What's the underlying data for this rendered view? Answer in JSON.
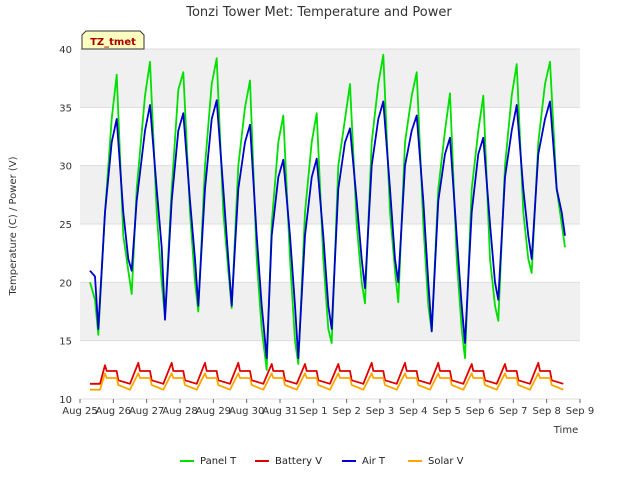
{
  "chart_data": {
    "type": "line",
    "title": "Tonzi Tower Met: Temperature and Power",
    "xlabel": "Time",
    "ylabel": "Temperature (C) / Power (V)",
    "ylim": [
      10,
      40
    ],
    "xlim": [
      0,
      15
    ],
    "yticks": [
      10,
      15,
      20,
      25,
      30,
      35,
      40
    ],
    "xticks": [
      {
        "value": 0,
        "label": "Aug 25"
      },
      {
        "value": 1,
        "label": "Aug 26"
      },
      {
        "value": 2,
        "label": "Aug 27"
      },
      {
        "value": 3,
        "label": "Aug 28"
      },
      {
        "value": 4,
        "label": "Aug 29"
      },
      {
        "value": 5,
        "label": "Aug 30"
      },
      {
        "value": 6,
        "label": "Aug 31"
      },
      {
        "value": 7,
        "label": "Sep 1"
      },
      {
        "value": 8,
        "label": "Sep 2"
      },
      {
        "value": 9,
        "label": "Sep 3"
      },
      {
        "value": 10,
        "label": "Sep 4"
      },
      {
        "value": 11,
        "label": "Sep 5"
      },
      {
        "value": 12,
        "label": "Sep 6"
      },
      {
        "value": 13,
        "label": "Sep 7"
      },
      {
        "value": 14,
        "label": "Sep 8"
      },
      {
        "value": 15,
        "label": "Sep 9"
      }
    ],
    "grid": true,
    "legend_position": "bottom",
    "station_tag": "TZ_tmet",
    "series": [
      {
        "name": "Panel T",
        "color": "#00e000",
        "x": [
          0.3,
          0.45,
          0.55,
          0.75,
          0.95,
          1.1,
          1.3,
          1.45,
          1.55,
          1.7,
          1.95,
          2.1,
          2.3,
          2.45,
          2.55,
          2.75,
          2.95,
          3.1,
          3.3,
          3.45,
          3.55,
          3.75,
          3.95,
          4.1,
          4.3,
          4.45,
          4.55,
          4.75,
          4.95,
          5.1,
          5.3,
          5.45,
          5.6,
          5.75,
          5.95,
          6.1,
          6.3,
          6.45,
          6.55,
          6.75,
          6.95,
          7.1,
          7.3,
          7.45,
          7.55,
          7.75,
          7.95,
          8.1,
          8.3,
          8.45,
          8.55,
          8.75,
          8.95,
          9.1,
          9.3,
          9.45,
          9.55,
          9.75,
          9.95,
          10.1,
          10.3,
          10.45,
          10.55,
          10.75,
          10.95,
          11.1,
          11.3,
          11.45,
          11.55,
          11.75,
          11.95,
          12.1,
          12.3,
          12.45,
          12.55,
          12.75,
          12.95,
          13.1,
          13.3,
          13.45,
          13.55,
          13.75,
          13.95,
          14.1,
          14.3,
          14.45,
          14.55
        ],
        "y": [
          20,
          18.5,
          15.5,
          26,
          34,
          37.8,
          24,
          21,
          19,
          28,
          36,
          38.9,
          26,
          20,
          17,
          28,
          36.5,
          38,
          26,
          20,
          17.5,
          30,
          37,
          39.2,
          26,
          21,
          17.8,
          30,
          35,
          37.3,
          22,
          16,
          12.5,
          25,
          32,
          34.3,
          22,
          15,
          13,
          26,
          32,
          34.5,
          22,
          16,
          14.8,
          30,
          34,
          37,
          25,
          20,
          18.2,
          32,
          37,
          39.5,
          26,
          21,
          18.3,
          32,
          36,
          38,
          25,
          18,
          15.8,
          28,
          33,
          36.2,
          22,
          16,
          13.5,
          28,
          33,
          36,
          22,
          18,
          16.7,
          30,
          36,
          38.7,
          26,
          22,
          20.8,
          32,
          37,
          38.9,
          28,
          25,
          23
        ]
      },
      {
        "name": "Battery V",
        "color": "#dd0000",
        "x": [
          0.3,
          0.6,
          0.75,
          0.8,
          1.1,
          1.15,
          1.5,
          1.75,
          1.8,
          2.1,
          2.15,
          2.5,
          2.75,
          2.8,
          3.1,
          3.15,
          3.5,
          3.75,
          3.8,
          4.1,
          4.15,
          4.5,
          4.75,
          4.8,
          5.1,
          5.15,
          5.5,
          5.75,
          5.8,
          6.1,
          6.15,
          6.5,
          6.75,
          6.8,
          7.1,
          7.15,
          7.5,
          7.75,
          7.8,
          8.1,
          8.15,
          8.5,
          8.75,
          8.8,
          9.1,
          9.15,
          9.5,
          9.75,
          9.8,
          10.1,
          10.15,
          10.5,
          10.75,
          10.8,
          11.1,
          11.15,
          11.5,
          11.75,
          11.8,
          12.1,
          12.15,
          12.5,
          12.75,
          12.8,
          13.1,
          13.15,
          13.5,
          13.75,
          13.8,
          14.1,
          14.15,
          14.5
        ],
        "y": [
          11.3,
          11.3,
          12.9,
          12.4,
          12.4,
          11.6,
          11.3,
          13.1,
          12.4,
          12.4,
          11.6,
          11.3,
          13.1,
          12.4,
          12.4,
          11.6,
          11.3,
          13.1,
          12.4,
          12.4,
          11.6,
          11.3,
          13.1,
          12.4,
          12.4,
          11.6,
          11.3,
          13.0,
          12.4,
          12.4,
          11.6,
          11.3,
          13.0,
          12.4,
          12.4,
          11.6,
          11.3,
          13.0,
          12.4,
          12.4,
          11.6,
          11.3,
          13.1,
          12.4,
          12.4,
          11.6,
          11.3,
          13.1,
          12.4,
          12.4,
          11.6,
          11.3,
          13.1,
          12.4,
          12.4,
          11.6,
          11.3,
          13.0,
          12.4,
          12.4,
          11.6,
          11.3,
          13.0,
          12.4,
          12.4,
          11.6,
          11.3,
          13.1,
          12.4,
          12.4,
          11.6,
          11.3
        ]
      },
      {
        "name": "Air T",
        "color": "#0000cc",
        "x": [
          0.3,
          0.45,
          0.55,
          0.75,
          0.95,
          1.1,
          1.3,
          1.45,
          1.55,
          1.7,
          1.95,
          2.1,
          2.3,
          2.45,
          2.55,
          2.75,
          2.95,
          3.1,
          3.3,
          3.45,
          3.55,
          3.75,
          3.95,
          4.1,
          4.3,
          4.45,
          4.55,
          4.75,
          4.95,
          5.1,
          5.3,
          5.45,
          5.6,
          5.75,
          5.95,
          6.1,
          6.3,
          6.45,
          6.55,
          6.75,
          6.95,
          7.1,
          7.3,
          7.45,
          7.55,
          7.75,
          7.95,
          8.1,
          8.3,
          8.45,
          8.55,
          8.75,
          8.95,
          9.1,
          9.3,
          9.45,
          9.55,
          9.75,
          9.95,
          10.1,
          10.3,
          10.45,
          10.55,
          10.75,
          10.95,
          11.1,
          11.3,
          11.45,
          11.55,
          11.75,
          11.95,
          12.1,
          12.3,
          12.45,
          12.55,
          12.75,
          12.95,
          13.1,
          13.3,
          13.45,
          13.55,
          13.75,
          13.95,
          14.1,
          14.3,
          14.45,
          14.55
        ],
        "y": [
          21,
          20.5,
          16,
          26,
          32,
          34,
          26,
          22,
          21,
          27,
          33,
          35.2,
          28,
          23,
          16.8,
          27,
          33,
          34.5,
          27,
          22,
          18,
          28,
          34,
          35.6,
          28,
          22,
          18,
          28,
          32,
          33.5,
          24,
          18,
          13.5,
          24,
          29,
          30.5,
          24,
          18,
          13.5,
          24,
          29,
          30.6,
          24,
          18,
          16,
          28,
          32,
          33.2,
          27,
          22,
          19.5,
          30,
          34,
          35.5,
          28,
          22,
          20,
          30,
          33,
          34.3,
          27,
          20,
          15.8,
          27,
          31,
          32.4,
          24,
          18,
          14.8,
          26,
          31,
          32.4,
          25,
          20,
          18.5,
          29,
          33,
          35.2,
          28,
          24,
          22,
          31,
          34,
          35.5,
          28,
          26,
          24
        ]
      },
      {
        "name": "Solar V",
        "color": "#ffa500",
        "x": [
          0.3,
          0.6,
          0.75,
          0.8,
          1.1,
          1.15,
          1.5,
          1.75,
          1.8,
          2.1,
          2.15,
          2.5,
          2.75,
          2.8,
          3.1,
          3.15,
          3.5,
          3.75,
          3.8,
          4.1,
          4.15,
          4.5,
          4.75,
          4.8,
          5.1,
          5.15,
          5.5,
          5.75,
          5.8,
          6.1,
          6.15,
          6.5,
          6.75,
          6.8,
          7.1,
          7.15,
          7.5,
          7.75,
          7.8,
          8.1,
          8.15,
          8.5,
          8.75,
          8.8,
          9.1,
          9.15,
          9.5,
          9.75,
          9.8,
          10.1,
          10.15,
          10.5,
          10.75,
          10.8,
          11.1,
          11.15,
          11.5,
          11.75,
          11.8,
          12.1,
          12.15,
          12.5,
          12.75,
          12.8,
          13.1,
          13.15,
          13.5,
          13.75,
          13.8,
          14.1,
          14.15,
          14.5
        ],
        "y": [
          10.8,
          10.8,
          12.2,
          11.8,
          11.8,
          11.2,
          10.8,
          12.2,
          11.8,
          11.8,
          11.2,
          10.8,
          12.2,
          11.8,
          11.8,
          11.2,
          10.8,
          12.2,
          11.8,
          11.8,
          11.2,
          10.8,
          12.2,
          11.8,
          11.8,
          11.2,
          10.8,
          12.2,
          11.8,
          11.8,
          11.2,
          10.8,
          12.2,
          11.8,
          11.8,
          11.2,
          10.8,
          12.2,
          11.8,
          11.8,
          11.2,
          10.8,
          12.2,
          11.8,
          11.8,
          11.2,
          10.8,
          12.2,
          11.8,
          11.8,
          11.2,
          10.8,
          12.2,
          11.8,
          11.8,
          11.2,
          10.8,
          12.2,
          11.8,
          11.8,
          11.2,
          10.8,
          12.2,
          11.8,
          11.8,
          11.2,
          10.8,
          12.2,
          11.8,
          11.8,
          11.2,
          10.8
        ]
      }
    ]
  }
}
